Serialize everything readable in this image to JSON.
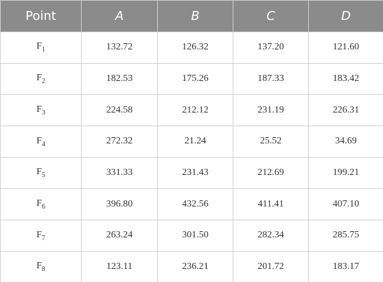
{
  "table": {
    "header": [
      "Point",
      "A",
      "B",
      "C",
      "D"
    ],
    "rows": [
      {
        "label": {
          "text": "F",
          "sub": "1"
        },
        "cells": [
          "132.72",
          "126.32",
          "137.20",
          "121.60"
        ]
      },
      {
        "label": {
          "text": "F",
          "sub": "2"
        },
        "cells": [
          "182.53",
          "175.26",
          "187.33",
          "183.42"
        ]
      },
      {
        "label": {
          "text": "F",
          "sub": "3"
        },
        "cells": [
          "224.58",
          "212.12",
          "231.19",
          "226.31"
        ]
      },
      {
        "label": {
          "text": "F",
          "sub": "4"
        },
        "cells": [
          "272.32",
          "21.24",
          "25.52",
          "34.69"
        ]
      },
      {
        "label": {
          "text": "F",
          "sub": "5"
        },
        "cells": [
          "331.33",
          "231.43",
          "212.69",
          "199.21"
        ]
      },
      {
        "label": {
          "text": "F",
          "sub": "6"
        },
        "cells": [
          "396.80",
          "432.56",
          "411.41",
          "407.10"
        ]
      },
      {
        "label": {
          "text": "F",
          "sub": "7"
        },
        "cells": [
          "263.24",
          "301.50",
          "282.34",
          "285.75"
        ]
      },
      {
        "label": {
          "text": "F",
          "sub": "8"
        },
        "cells": [
          "123.11",
          "236.21",
          "201.72",
          "183.17"
        ]
      }
    ]
  }
}
